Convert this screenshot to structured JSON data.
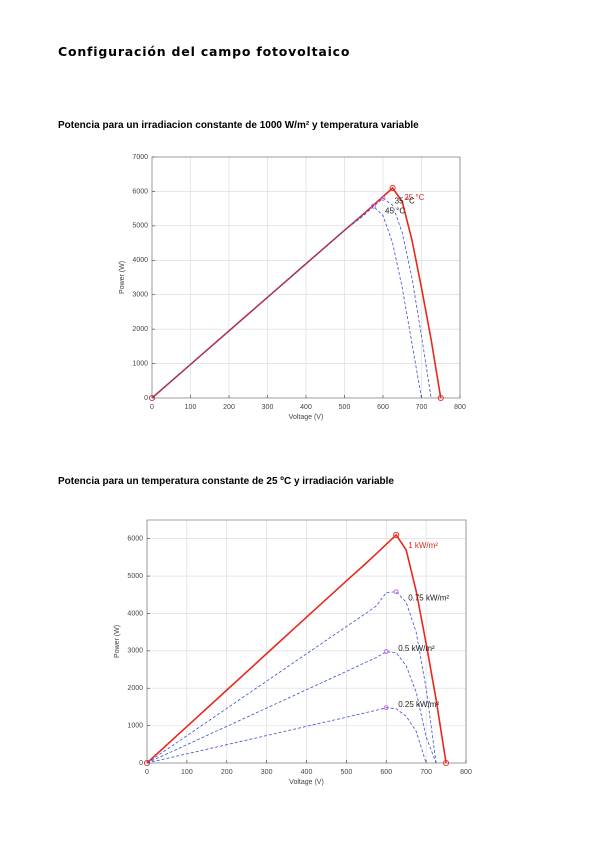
{
  "heading": "Configuración del campo fotovoltaico",
  "chart_data": [
    {
      "type": "line",
      "title": "Potencia para un irradiacion constante de 1000 W/m² y temperatura variable",
      "xlabel": "Voltage (V)",
      "ylabel": "Power (W)",
      "x": [
        0,
        100,
        200,
        300,
        400,
        500,
        550,
        575,
        600,
        625,
        650,
        675,
        700,
        725,
        750
      ],
      "series": [
        {
          "name": "25 °C",
          "color": "#e8281e",
          "style": "solid",
          "values": [
            0,
            975,
            1950,
            2925,
            3900,
            4870,
            5350,
            5600,
            5850,
            6100,
            5700,
            4600,
            3200,
            1700,
            0
          ]
        },
        {
          "name": "35 °C",
          "color": "#3b4fd6",
          "style": "dashed",
          "values": [
            0,
            975,
            1950,
            2925,
            3900,
            4870,
            5330,
            5560,
            5800,
            5600,
            4800,
            3500,
            1800,
            0,
            null
          ]
        },
        {
          "name": "45 °C",
          "color": "#3b4fd6",
          "style": "dashed",
          "values": [
            0,
            975,
            1950,
            2925,
            3900,
            4870,
            5300,
            5570,
            5300,
            4500,
            3200,
            1600,
            0,
            null,
            null
          ]
        }
      ],
      "xlim": [
        0,
        800
      ],
      "ylim": [
        0,
        7000
      ],
      "xticks": [
        0,
        100,
        200,
        300,
        400,
        500,
        600,
        700,
        800
      ],
      "yticks": [
        0,
        1000,
        2000,
        3000,
        4000,
        5000,
        6000,
        7000
      ],
      "grid": true
    },
    {
      "type": "line",
      "title": "Potencia para un temperatura constante de 25 ºC y irradiación variable",
      "xlabel": "Voltage (V)",
      "ylabel": "Power (W)",
      "x": [
        0,
        100,
        200,
        300,
        400,
        500,
        550,
        575,
        600,
        625,
        650,
        675,
        700,
        725,
        750
      ],
      "series": [
        {
          "name": "1 kW/m²",
          "color": "#e8281e",
          "style": "solid",
          "values": [
            0,
            975,
            1950,
            2925,
            3900,
            4870,
            5350,
            5600,
            5850,
            6100,
            5700,
            4600,
            3200,
            1700,
            0
          ]
        },
        {
          "name": "0.75 kW/m²",
          "color": "#3b4fd6",
          "style": "dashed",
          "values": [
            0,
            730,
            1460,
            2190,
            2920,
            3650,
            4010,
            4200,
            4560,
            4580,
            4300,
            3500,
            2000,
            0,
            null
          ]
        },
        {
          "name": "0.5 kW/m²",
          "color": "#3b4fd6",
          "style": "dashed",
          "values": [
            0,
            490,
            980,
            1470,
            1960,
            2450,
            2700,
            2820,
            2980,
            2950,
            2600,
            1900,
            700,
            0,
            null
          ]
        },
        {
          "name": "0.25 kW/m²",
          "color": "#3b4fd6",
          "style": "dashed",
          "values": [
            0,
            245,
            490,
            735,
            980,
            1225,
            1350,
            1410,
            1480,
            1450,
            1250,
            850,
            0,
            null,
            null
          ]
        }
      ],
      "xlim": [
        0,
        800
      ],
      "ylim": [
        0,
        6500
      ],
      "xticks": [
        0,
        100,
        200,
        300,
        400,
        500,
        600,
        700,
        800
      ],
      "yticks": [
        0,
        1000,
        2000,
        3000,
        4000,
        5000,
        6000
      ],
      "grid": true
    }
  ]
}
